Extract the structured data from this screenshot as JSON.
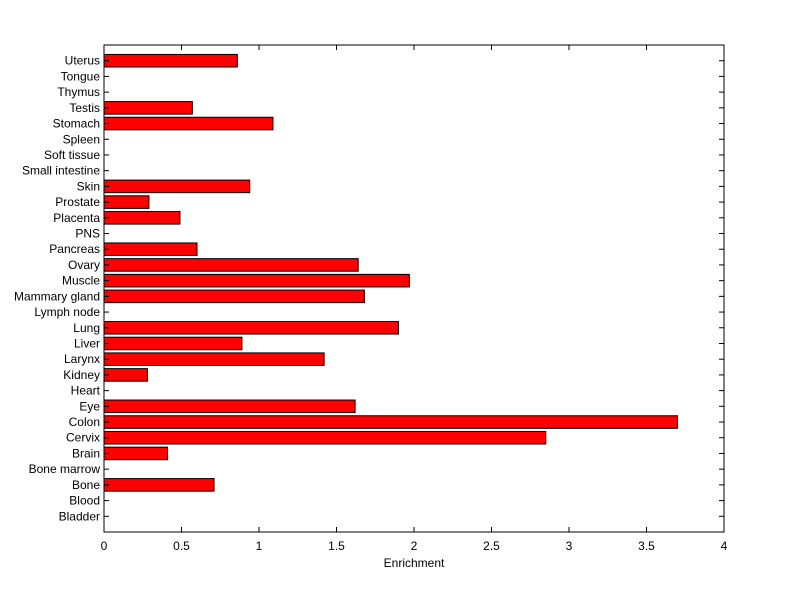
{
  "chart_data": {
    "type": "bar",
    "orientation": "horizontal",
    "title": "",
    "xlabel": "Enrichment",
    "ylabel": "",
    "xlim": [
      0,
      4
    ],
    "xticks": [
      "0",
      "0.5",
      "1",
      "1.5",
      "2",
      "2.5",
      "3",
      "3.5",
      "4"
    ],
    "bar_color": "#ff0000",
    "grid": false,
    "categories": [
      "Bladder",
      "Blood",
      "Bone",
      "Bone marrow",
      "Brain",
      "Cervix",
      "Colon",
      "Eye",
      "Heart",
      "Kidney",
      "Larynx",
      "Liver",
      "Lung",
      "Lymph node",
      "Mammary gland",
      "Muscle",
      "Ovary",
      "Pancreas",
      "PNS",
      "Placenta",
      "Prostate",
      "Skin",
      "Small intestine",
      "Soft tissue",
      "Spleen",
      "Stomach",
      "Testis",
      "Thymus",
      "Tongue",
      "Uterus"
    ],
    "values": [
      0,
      0,
      0.71,
      0,
      0.41,
      2.85,
      3.7,
      1.62,
      0,
      0.28,
      1.42,
      0.89,
      1.9,
      0,
      1.68,
      1.97,
      1.64,
      0.6,
      0,
      0.49,
      0.29,
      0.94,
      0,
      0,
      0,
      1.09,
      0.57,
      0,
      0,
      0.86
    ]
  }
}
